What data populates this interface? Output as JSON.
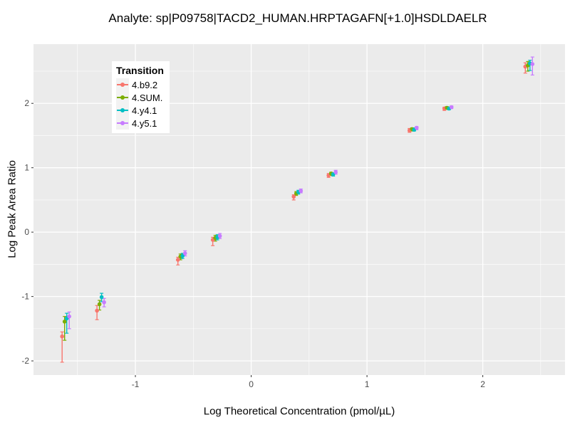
{
  "chart_data": {
    "type": "scatter",
    "title": "Analyte: sp|P09758|TACD2_HUMAN.HRPTAGAFN[+1.0]HSDLDAELR",
    "xlabel": "Log Theoretical Concentration (pmol/µL)",
    "ylabel": "Log Peak Area Ratio",
    "xlim": [
      -1.88,
      2.71
    ],
    "ylim": [
      -2.22,
      2.92
    ],
    "x_ticks": [
      -1,
      0,
      1,
      2
    ],
    "y_ticks": [
      -2,
      -1,
      0,
      1,
      2
    ],
    "grid": true,
    "legend": {
      "title": "Transition",
      "position": "top-left-inside"
    },
    "panel_background": "#EBEBEB",
    "grid_major_color": "#FFFFFF",
    "grid_minor_color": "#FFFFFF",
    "tick_label_color": "#4D4D4D",
    "x": [
      -1.602,
      -1.301,
      -0.602,
      -0.301,
      0.398,
      0.699,
      1.398,
      1.699,
      2.398
    ],
    "series": [
      {
        "name": "4.b9.2",
        "color": "#F8766D",
        "y": [
          -1.62,
          -1.22,
          -0.43,
          -0.12,
          0.55,
          0.88,
          1.58,
          1.92,
          2.57
        ],
        "ymin": [
          -2.02,
          -1.36,
          -0.51,
          -0.21,
          0.5,
          0.85,
          1.55,
          1.89,
          2.47
        ],
        "ymax": [
          -1.55,
          -1.14,
          -0.39,
          -0.08,
          0.58,
          0.91,
          1.61,
          1.94,
          2.63
        ]
      },
      {
        "name": "4.SUM.",
        "color": "#7CAE00",
        "y": [
          -1.39,
          -1.12,
          -0.38,
          -0.09,
          0.6,
          0.91,
          1.6,
          1.93,
          2.59
        ],
        "ymin": [
          -1.68,
          -1.21,
          -0.43,
          -0.14,
          0.57,
          0.88,
          1.57,
          1.91,
          2.5
        ],
        "ymax": [
          -1.31,
          -1.06,
          -0.34,
          -0.05,
          0.63,
          0.93,
          1.62,
          1.95,
          2.65
        ]
      },
      {
        "name": "4.y4.1",
        "color": "#00BFC4",
        "y": [
          -1.34,
          -1.01,
          -0.37,
          -0.08,
          0.62,
          0.9,
          1.59,
          1.92,
          2.62
        ],
        "ymin": [
          -1.57,
          -1.08,
          -0.41,
          -0.12,
          0.59,
          0.87,
          1.57,
          1.9,
          2.51
        ],
        "ymax": [
          -1.26,
          -0.95,
          -0.33,
          -0.04,
          0.65,
          0.92,
          1.62,
          1.94,
          2.67
        ]
      },
      {
        "name": "4.y5.1",
        "color": "#C77CFF",
        "y": [
          -1.31,
          -1.09,
          -0.33,
          -0.06,
          0.64,
          0.93,
          1.62,
          1.94,
          2.61
        ],
        "ymin": [
          -1.5,
          -1.16,
          -0.37,
          -0.1,
          0.61,
          0.9,
          1.59,
          1.92,
          2.44
        ],
        "ymax": [
          -1.24,
          -1.03,
          -0.29,
          -0.02,
          0.67,
          0.96,
          1.64,
          1.96,
          2.72
        ]
      }
    ]
  }
}
